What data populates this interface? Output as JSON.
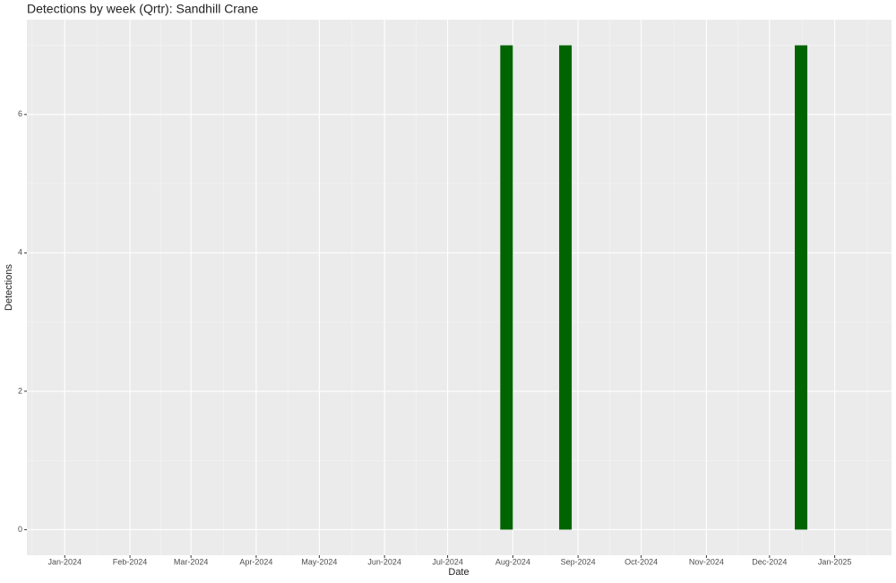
{
  "chart_data": {
    "type": "bar",
    "title": "Detections by week (Qrtr): Sandhill Crane",
    "x_label": "Date",
    "y_label": "Detections",
    "x": [
      "2024-07-29",
      "2024-08-26",
      "2024-12-16"
    ],
    "values": [
      7,
      7,
      7
    ],
    "color": "#006400",
    "xlim": [
      "2023-12-14",
      "2025-01-28"
    ],
    "xticks": [
      {
        "value": "2024-01-01",
        "label": "Jan-2024"
      },
      {
        "value": "2024-02-01",
        "label": "Feb-2024"
      },
      {
        "value": "2024-03-01",
        "label": "Mar-2024"
      },
      {
        "value": "2024-04-01",
        "label": "Apr-2024"
      },
      {
        "value": "2024-05-01",
        "label": "May-2024"
      },
      {
        "value": "2024-06-01",
        "label": "Jun-2024"
      },
      {
        "value": "2024-07-01",
        "label": "Jul-2024"
      },
      {
        "value": "2024-08-01",
        "label": "Aug-2024"
      },
      {
        "value": "2024-09-01",
        "label": "Sep-2024"
      },
      {
        "value": "2024-10-01",
        "label": "Oct-2024"
      },
      {
        "value": "2024-11-01",
        "label": "Nov-2024"
      },
      {
        "value": "2024-12-01",
        "label": "Dec-2024"
      },
      {
        "value": "2025-01-01",
        "label": "Jan-2025"
      }
    ],
    "ylim": [
      -0.37,
      7.37
    ],
    "yticks": [
      0,
      2,
      4,
      6
    ],
    "y_minor_ticks": [
      1,
      3,
      5,
      7
    ],
    "grid": true
  }
}
